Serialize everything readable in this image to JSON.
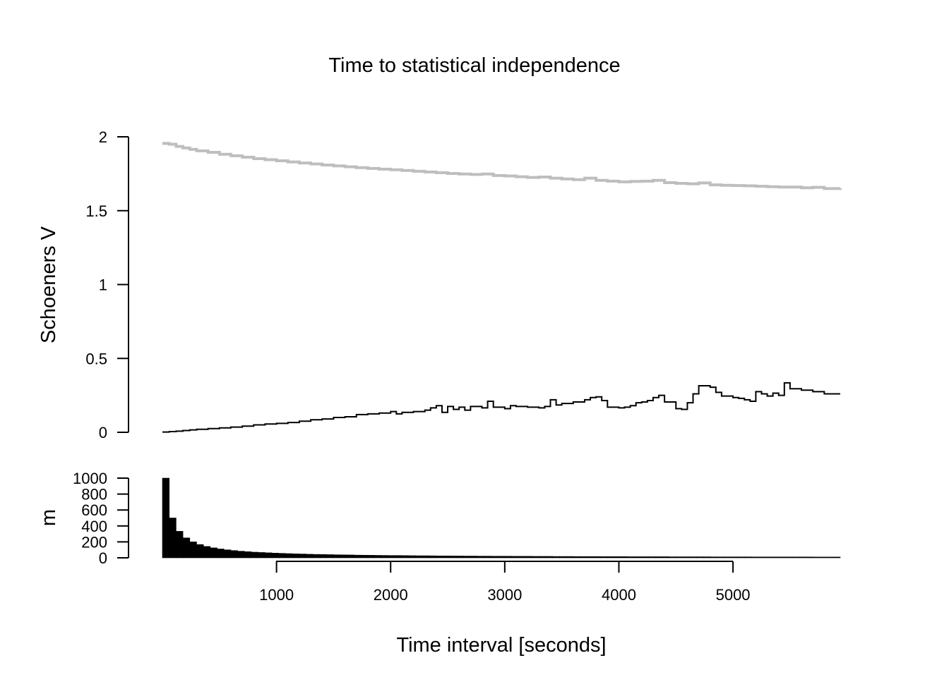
{
  "chart_data": [
    {
      "type": "line",
      "title": "Time to statistical independence",
      "xlabel": "",
      "ylabel": "Schoeners V",
      "ylim": [
        0,
        2
      ],
      "y_ticks": [
        "0",
        "0.5",
        "1",
        "1.5",
        "2"
      ],
      "xlim": [
        0,
        5940
      ],
      "grid": false,
      "series": [
        {
          "color": "#bebebe",
          "x": [
            0,
            60,
            120,
            180,
            240,
            300,
            400,
            500,
            600,
            700,
            800,
            900,
            1000,
            1100,
            1200,
            1300,
            1400,
            1500,
            1600,
            1700,
            1800,
            1900,
            2000,
            2100,
            2200,
            2300,
            2400,
            2500,
            2600,
            2700,
            2800,
            2900,
            3000,
            3100,
            3200,
            3300,
            3400,
            3500,
            3600,
            3700,
            3800,
            3900,
            4000,
            4100,
            4200,
            4300,
            4400,
            4500,
            4600,
            4700,
            4800,
            4900,
            5000,
            5100,
            5200,
            5300,
            5400,
            5500,
            5600,
            5700,
            5800,
            5940
          ],
          "values": [
            1.955,
            1.95,
            1.935,
            1.925,
            1.915,
            1.905,
            1.895,
            1.882,
            1.872,
            1.862,
            1.852,
            1.845,
            1.838,
            1.83,
            1.823,
            1.816,
            1.809,
            1.803,
            1.797,
            1.791,
            1.786,
            1.781,
            1.777,
            1.772,
            1.767,
            1.762,
            1.757,
            1.752,
            1.748,
            1.745,
            1.748,
            1.738,
            1.735,
            1.73,
            1.725,
            1.728,
            1.72,
            1.715,
            1.71,
            1.72,
            1.705,
            1.7,
            1.695,
            1.698,
            1.7,
            1.705,
            1.69,
            1.685,
            1.682,
            1.688,
            1.675,
            1.672,
            1.67,
            1.668,
            1.665,
            1.662,
            1.66,
            1.66,
            1.655,
            1.658,
            1.65,
            1.652
          ]
        },
        {
          "color": "#000000",
          "x": [
            0,
            60,
            120,
            180,
            240,
            300,
            400,
            500,
            600,
            700,
            800,
            900,
            1000,
            1100,
            1200,
            1300,
            1400,
            1500,
            1600,
            1700,
            1800,
            1900,
            2000,
            2050,
            2100,
            2200,
            2300,
            2350,
            2400,
            2450,
            2500,
            2550,
            2600,
            2650,
            2700,
            2800,
            2850,
            2900,
            3000,
            3050,
            3100,
            3200,
            3300,
            3350,
            3400,
            3450,
            3500,
            3600,
            3700,
            3750,
            3800,
            3850,
            3900,
            4000,
            4050,
            4100,
            4150,
            4200,
            4250,
            4300,
            4350,
            4400,
            4500,
            4550,
            4600,
            4650,
            4700,
            4800,
            4850,
            4900,
            5000,
            5050,
            5100,
            5150,
            5200,
            5250,
            5300,
            5350,
            5400,
            5450,
            5500,
            5600,
            5700,
            5800,
            5940
          ],
          "values": [
            0.002,
            0.005,
            0.008,
            0.012,
            0.016,
            0.02,
            0.025,
            0.03,
            0.035,
            0.042,
            0.05,
            0.056,
            0.06,
            0.066,
            0.075,
            0.085,
            0.09,
            0.1,
            0.105,
            0.12,
            0.125,
            0.13,
            0.14,
            0.125,
            0.135,
            0.14,
            0.15,
            0.165,
            0.18,
            0.135,
            0.175,
            0.155,
            0.17,
            0.15,
            0.175,
            0.165,
            0.21,
            0.17,
            0.16,
            0.18,
            0.175,
            0.17,
            0.165,
            0.175,
            0.22,
            0.185,
            0.195,
            0.205,
            0.22,
            0.235,
            0.24,
            0.215,
            0.17,
            0.165,
            0.17,
            0.18,
            0.2,
            0.205,
            0.215,
            0.235,
            0.25,
            0.205,
            0.16,
            0.155,
            0.2,
            0.26,
            0.315,
            0.305,
            0.27,
            0.245,
            0.235,
            0.23,
            0.22,
            0.21,
            0.275,
            0.26,
            0.245,
            0.265,
            0.25,
            0.335,
            0.295,
            0.285,
            0.275,
            0.26,
            0.26
          ]
        }
      ]
    },
    {
      "type": "bar",
      "xlabel": "Time interval [seconds]",
      "ylabel": "m",
      "ylim": [
        0,
        1000
      ],
      "y_ticks": [
        "0",
        "200",
        "400",
        "600",
        "800",
        "1000"
      ],
      "x_ticks": [
        "1000",
        "2000",
        "3000",
        "4000",
        "5000"
      ],
      "xlim": [
        0,
        5940
      ],
      "bar_width": 60,
      "values": [
        1000,
        500,
        333,
        250,
        200,
        167,
        143,
        125,
        111,
        100,
        91,
        83,
        77,
        71,
        67,
        63,
        59,
        56,
        53,
        50,
        48,
        45,
        43,
        42,
        40,
        38,
        37,
        36,
        34,
        33,
        32,
        31,
        30,
        29,
        29,
        28,
        27,
        26,
        26,
        25,
        24,
        24,
        23,
        23,
        22,
        22,
        21,
        21,
        20,
        20,
        20,
        19,
        19,
        19,
        18,
        18,
        18,
        17,
        17,
        17,
        16,
        16,
        16,
        16,
        15,
        15,
        15,
        15,
        14,
        14,
        14,
        14,
        14,
        14,
        13,
        13,
        13,
        13,
        13,
        13,
        12,
        12,
        12,
        12,
        12,
        12,
        11,
        11,
        11,
        11,
        11,
        11,
        11,
        11,
        11,
        10,
        10,
        10,
        10
      ]
    }
  ]
}
